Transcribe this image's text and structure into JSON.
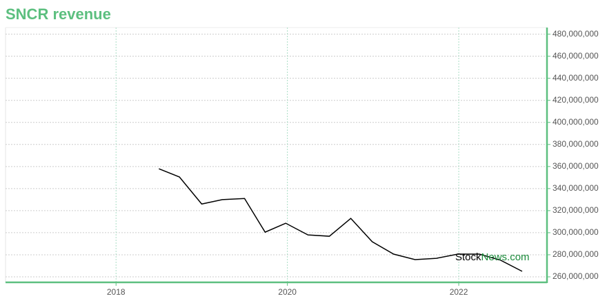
{
  "chart_data": {
    "type": "line",
    "title": "SNCR revenue",
    "watermark": [
      "Stock",
      "News.com"
    ],
    "x": [
      2018.5,
      2018.74,
      2019.0,
      2019.24,
      2019.5,
      2019.74,
      2019.98,
      2020.24,
      2020.49,
      2020.74,
      2020.99,
      2021.24,
      2021.49,
      2021.74,
      2021.99,
      2022.24,
      2022.49,
      2022.74
    ],
    "series": [
      {
        "name": "SNCR revenue",
        "color": "#000000",
        "values": [
          358000000,
          350500000,
          326000000,
          330000000,
          331000000,
          300500000,
          308600000,
          298000000,
          296800000,
          313000000,
          291800000,
          280600000,
          275600000,
          276800000,
          280600000,
          280600000,
          275000000,
          265000000
        ]
      }
    ],
    "xlim": [
      2016.71,
      2023.03
    ],
    "xticks": [
      2018,
      2020,
      2022
    ],
    "ylim": [
      255000000,
      486000000
    ],
    "yticks": [
      {
        "value": 260000000,
        "label": "260,000,000"
      },
      {
        "value": 280000000,
        "label": "280,000,000"
      },
      {
        "value": 300000000,
        "label": "300,000,000"
      },
      {
        "value": 320000000,
        "label": "320,000,000"
      },
      {
        "value": 340000000,
        "label": "340,000,000"
      },
      {
        "value": 360000000,
        "label": "360,000,000"
      },
      {
        "value": 380000000,
        "label": "380,000,000"
      },
      {
        "value": 400000000,
        "label": "400,000,000"
      },
      {
        "value": 420000000,
        "label": "420,000,000"
      },
      {
        "value": 440000000,
        "label": "440,000,000"
      },
      {
        "value": 460000000,
        "label": "460,000,000"
      },
      {
        "value": 480000000,
        "label": "480,000,000"
      }
    ],
    "grid": true,
    "axis_color": "#5cbf7f",
    "title_color": "#5cbf7f"
  }
}
